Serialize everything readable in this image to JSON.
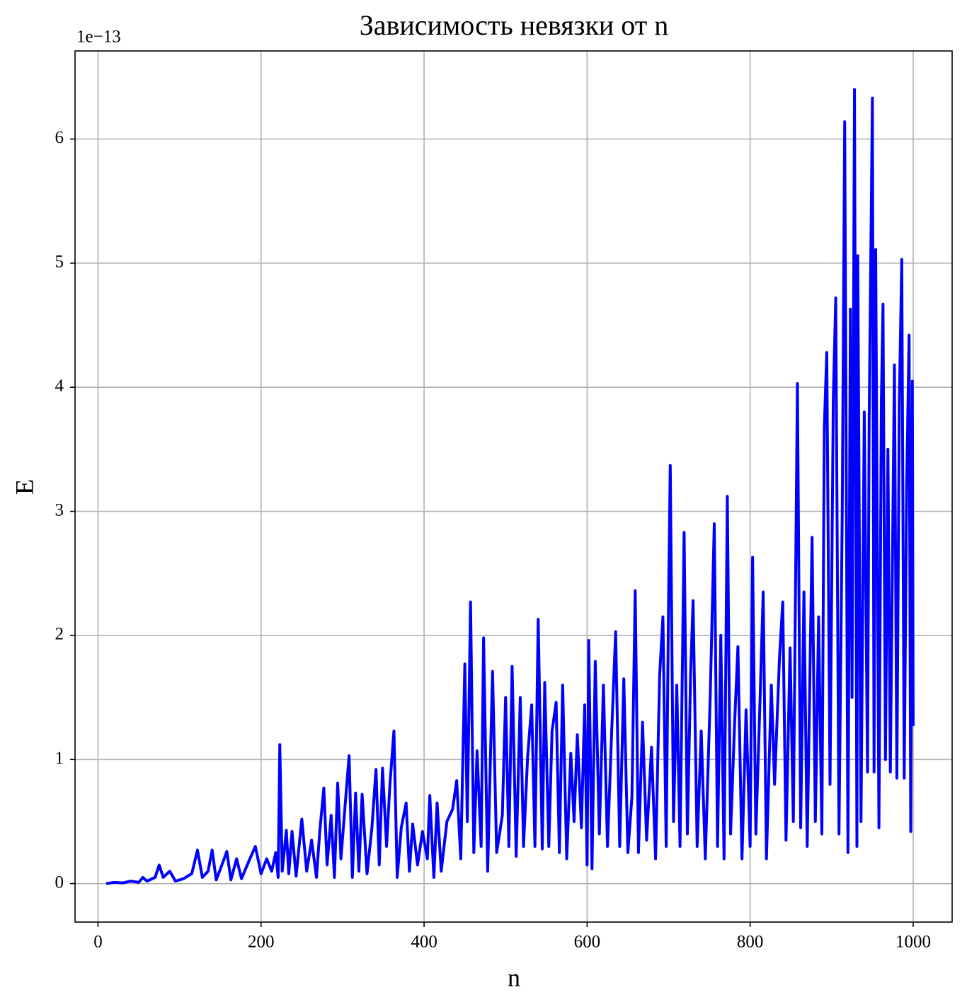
{
  "chart_data": {
    "type": "line",
    "title": "Зависимость невязки от n",
    "xlabel": "n",
    "ylabel": "E",
    "y_offset_text": "1e−13",
    "color": "#0000ff",
    "grid": true,
    "xlim": [
      -28.2,
      1047.8
    ],
    "ylim": [
      -0.31,
      6.71
    ],
    "xticks": [
      0,
      200,
      400,
      600,
      800,
      1000
    ],
    "yticks": [
      0,
      1,
      2,
      3,
      4,
      5,
      6
    ],
    "x": [
      10,
      20,
      30,
      40,
      50,
      55,
      60,
      70,
      75,
      80,
      88,
      95,
      105,
      115,
      122,
      128,
      135,
      140,
      145,
      152,
      158,
      163,
      170,
      176,
      185,
      193,
      200,
      207,
      213,
      218,
      221,
      223,
      226,
      231,
      234,
      238,
      243,
      250,
      256,
      262,
      268,
      272,
      277,
      281,
      286,
      290,
      294,
      298,
      303,
      308,
      312,
      316,
      320,
      324,
      330,
      336,
      341,
      345,
      349,
      354,
      358,
      363,
      367,
      372,
      378,
      382,
      386,
      392,
      398,
      404,
      407,
      412,
      416,
      421,
      428,
      435,
      440,
      445,
      450,
      453,
      457,
      461,
      465,
      470,
      473,
      478,
      484,
      489,
      496,
      500,
      504,
      508,
      513,
      518,
      522,
      527,
      532,
      536,
      540,
      545,
      548,
      553,
      557,
      562,
      566,
      570,
      575,
      580,
      584,
      588,
      593,
      597,
      600,
      602,
      606,
      610,
      615,
      620,
      625,
      630,
      635,
      640,
      645,
      650,
      655,
      659,
      663,
      668,
      673,
      679,
      684,
      689,
      693,
      697,
      700,
      702,
      706,
      710,
      714,
      719,
      723,
      727,
      730,
      735,
      740,
      745,
      751,
      756,
      760,
      764,
      768,
      772,
      776,
      781,
      785,
      790,
      795,
      800,
      803,
      807,
      812,
      816,
      820,
      826,
      830,
      836,
      840,
      844,
      849,
      853,
      858,
      862,
      866,
      870,
      876,
      880,
      884,
      888,
      891,
      894,
      898,
      902,
      905,
      909,
      913,
      916,
      920,
      923,
      925,
      928,
      931,
      932,
      936,
      940,
      944,
      946,
      950,
      952,
      954,
      958,
      961,
      963,
      966,
      969,
      972,
      977,
      980,
      983,
      986,
      989,
      992,
      995,
      997,
      999,
      1000
    ],
    "values": [
      0,
      0.01,
      0.005,
      0.02,
      0.01,
      0.05,
      0.02,
      0.05,
      0.15,
      0.05,
      0.1,
      0.02,
      0.04,
      0.08,
      0.27,
      0.05,
      0.1,
      0.27,
      0.03,
      0.15,
      0.26,
      0.03,
      0.2,
      0.04,
      0.18,
      0.3,
      0.08,
      0.2,
      0.1,
      0.25,
      0.05,
      1.12,
      0.1,
      0.43,
      0.08,
      0.42,
      0.06,
      0.52,
      0.1,
      0.35,
      0.05,
      0.42,
      0.77,
      0.15,
      0.55,
      0.05,
      0.81,
      0.2,
      0.62,
      1.03,
      0.05,
      0.73,
      0.1,
      0.72,
      0.08,
      0.45,
      0.92,
      0.15,
      0.93,
      0.3,
      0.79,
      1.23,
      0.05,
      0.45,
      0.65,
      0.1,
      0.48,
      0.15,
      0.42,
      0.2,
      0.71,
      0.05,
      0.65,
      0.1,
      0.5,
      0.6,
      0.83,
      0.2,
      1.77,
      0.5,
      2.27,
      0.25,
      1.07,
      0.3,
      1.98,
      0.1,
      1.71,
      0.25,
      0.55,
      1.5,
      0.3,
      1.75,
      0.22,
      1.5,
      0.3,
      1.02,
      1.44,
      0.3,
      2.13,
      0.28,
      1.62,
      0.3,
      1.23,
      1.46,
      0.25,
      1.6,
      0.2,
      1.05,
      0.5,
      1.2,
      0.45,
      1.44,
      0.15,
      1.96,
      0.12,
      1.79,
      0.4,
      1.6,
      0.3,
      1.2,
      2.03,
      0.3,
      1.65,
      0.25,
      0.7,
      2.36,
      0.25,
      1.3,
      0.35,
      1.1,
      0.2,
      1.68,
      2.15,
      0.3,
      2.32,
      3.37,
      0.5,
      1.6,
      0.3,
      2.83,
      0.4,
      1.7,
      2.28,
      0.3,
      1.23,
      0.2,
      1.5,
      2.9,
      0.3,
      2.0,
      0.2,
      3.12,
      0.4,
      1.3,
      1.91,
      0.2,
      1.4,
      0.3,
      2.63,
      0.4,
      1.45,
      2.35,
      0.2,
      1.6,
      0.8,
      1.82,
      2.27,
      0.35,
      1.9,
      0.5,
      4.03,
      0.45,
      2.35,
      0.3,
      2.79,
      0.5,
      2.15,
      0.4,
      3.68,
      4.28,
      0.8,
      3.9,
      4.72,
      0.4,
      3.0,
      6.14,
      0.25,
      4.63,
      1.5,
      6.4,
      0.3,
      5.06,
      0.5,
      3.8,
      0.9,
      3.73,
      6.33,
      0.9,
      5.11,
      0.45,
      3.9,
      4.67,
      1.0,
      3.5,
      0.9,
      4.18,
      0.85,
      3.87,
      5.03,
      0.85,
      3.2,
      4.42,
      0.42,
      4.05,
      1.27
    ]
  }
}
